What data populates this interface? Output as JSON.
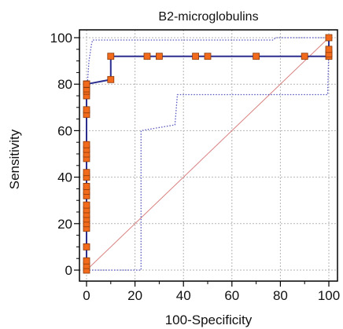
{
  "chart_data": {
    "type": "line",
    "title": "B2-microglobulins",
    "xlabel": "100-Specificity",
    "ylabel": "Sensitivity",
    "xlim": [
      0,
      100
    ],
    "ylim": [
      0,
      100
    ],
    "xticks": [
      "0",
      "20",
      "40",
      "60",
      "80",
      "100"
    ],
    "yticks": [
      "0",
      "20",
      "40",
      "60",
      "80",
      "100"
    ],
    "grid": true,
    "colors": {
      "roc_line": "#2b2d8f",
      "marker_fill": "#f26a1b",
      "marker_edge": "#8a3a0a",
      "ci_line": "#5555c0",
      "diagonal": "#d98080",
      "grid": "#b5b5b5",
      "frame": "#000000"
    },
    "series": [
      {
        "role": "roc",
        "style": "solid",
        "markers": true,
        "x": [
          0,
          0,
          0,
          0,
          0,
          0,
          0,
          0,
          0,
          0,
          0,
          0,
          0,
          0,
          0,
          0,
          0,
          0,
          0,
          0,
          0,
          0,
          0,
          0,
          0,
          0,
          0,
          0,
          0,
          0,
          0,
          0,
          0,
          10,
          10,
          25,
          30,
          45,
          50,
          70,
          90,
          100,
          100,
          100,
          100
        ],
        "y": [
          0,
          2,
          4,
          10,
          18,
          20,
          22,
          24,
          26,
          28,
          32,
          34,
          36,
          40,
          42,
          48,
          50,
          52,
          54,
          67,
          69,
          75,
          77,
          78,
          80,
          80,
          80,
          80,
          80,
          80,
          80,
          80,
          80,
          82,
          92,
          92,
          92,
          92,
          92,
          92,
          92,
          92,
          93,
          95,
          100
        ]
      },
      {
        "role": "ci_upper",
        "style": "dotted",
        "markers": false,
        "x": [
          0,
          0,
          1,
          2,
          2.5,
          77,
          78,
          100
        ],
        "y": [
          0,
          75,
          90,
          97,
          99,
          99,
          100,
          100
        ]
      },
      {
        "role": "ci_lower",
        "style": "dotted",
        "markers": false,
        "x": [
          0,
          22.5,
          22.5,
          36.5,
          37.5,
          99.5,
          100
        ],
        "y": [
          0,
          0,
          60,
          62.5,
          75.5,
          75.5,
          95
        ]
      },
      {
        "role": "reference",
        "style": "solid",
        "markers": false,
        "x": [
          0,
          100
        ],
        "y": [
          0,
          100
        ]
      }
    ]
  }
}
